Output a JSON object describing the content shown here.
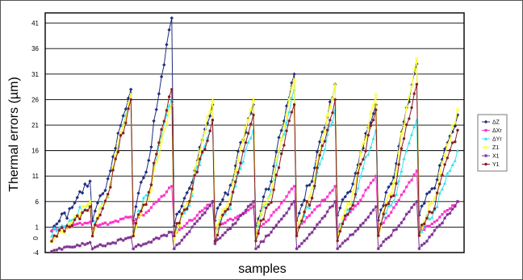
{
  "chart_data": {
    "type": "line",
    "title": "",
    "xlabel": "samples",
    "ylabel": "Thermal errors (µm)",
    "ylim": [
      -4,
      43
    ],
    "y_ticks": [
      -4,
      1,
      6,
      11,
      16,
      21,
      26,
      31,
      36,
      41
    ],
    "y_tick_labels": [
      "-4",
      "1",
      "6",
      "11",
      "16",
      "21",
      "26",
      "31",
      "36",
      "41"
    ],
    "extra_tick_label": "0",
    "grid": "horizontal",
    "legend_position": "right",
    "segment_count": 10,
    "segments": [
      {
        "ΔZ": [
          1,
          10
        ],
        "ΔXr": [
          0.5,
          2
        ],
        "ΔYr": [
          0,
          6
        ],
        "Z1": [
          -1,
          6
        ],
        "X1": [
          -3.5,
          -2
        ],
        "Y1": [
          -1,
          5
        ]
      },
      {
        "ΔZ": [
          3,
          28
        ],
        "ΔXr": [
          1,
          3
        ],
        "ΔYr": [
          0,
          27
        ],
        "Z1": [
          0,
          27
        ],
        "X1": [
          -3,
          -1
        ],
        "Y1": [
          0,
          26
        ]
      },
      {
        "ΔZ": [
          3,
          42
        ],
        "ΔXr": [
          2,
          9
        ],
        "ΔYr": [
          1,
          26
        ],
        "Z1": [
          0,
          25
        ],
        "X1": [
          -3,
          0
        ],
        "Y1": [
          0,
          28
        ]
      },
      {
        "ΔZ": [
          2,
          25
        ],
        "ΔXr": [
          0,
          6
        ],
        "ΔYr": [
          0,
          22
        ],
        "Z1": [
          -1,
          26
        ],
        "X1": [
          -3,
          6
        ],
        "Y1": [
          0,
          22
        ]
      },
      {
        "ΔZ": [
          3,
          25
        ],
        "ΔXr": [
          1,
          5
        ],
        "ΔYr": [
          0,
          20
        ],
        "Z1": [
          0,
          26
        ],
        "X1": [
          -2,
          6
        ],
        "Y1": [
          -1,
          23
        ]
      },
      {
        "ΔZ": [
          2,
          31
        ],
        "ΔXr": [
          0,
          9
        ],
        "ΔYr": [
          0,
          28
        ],
        "Z1": [
          0,
          30
        ],
        "X1": [
          -3,
          6
        ],
        "Y1": [
          -1,
          25
        ]
      },
      {
        "ΔZ": [
          3,
          29
        ],
        "ΔXr": [
          1,
          9
        ],
        "ΔYr": [
          0,
          24
        ],
        "Z1": [
          0,
          29
        ],
        "X1": [
          -3,
          6
        ],
        "Y1": [
          0,
          26
        ]
      },
      {
        "ΔZ": [
          4,
          25
        ],
        "ΔXr": [
          1,
          11
        ],
        "ΔYr": [
          0,
          20
        ],
        "Z1": [
          0,
          27
        ],
        "X1": [
          -3,
          5
        ],
        "Y1": [
          -1,
          24
        ]
      },
      {
        "ΔZ": [
          3,
          33
        ],
        "ΔXr": [
          1,
          12
        ],
        "ΔYr": [
          0,
          22
        ],
        "Z1": [
          0,
          34
        ],
        "X1": [
          -3,
          6
        ],
        "Y1": [
          0,
          29
        ]
      },
      {
        "ΔZ": [
          4,
          23
        ],
        "ΔXr": [
          0,
          6
        ],
        "ΔYr": [
          0,
          16
        ],
        "Z1": [
          0,
          24
        ],
        "X1": [
          -3,
          6
        ],
        "Y1": [
          0,
          20
        ]
      }
    ],
    "series": [
      {
        "name": "ΔZ",
        "color": "#1f2d7f",
        "marker": "diamond",
        "base": "ΔZ",
        "points_per_segment": 16
      },
      {
        "name": "ΔXr",
        "color": "#ff33cc",
        "marker": "square",
        "base": "ΔXr",
        "points_per_segment": 16
      },
      {
        "name": "ΔYr",
        "color": "#33e5f2",
        "marker": "triangle",
        "base": "ΔYr",
        "points_per_segment": 16
      },
      {
        "name": "Z1",
        "color": "#ffff33",
        "marker": "x",
        "base": "Z1",
        "points_per_segment": 16
      },
      {
        "name": "X1",
        "color": "#7a2d8f",
        "marker": "asterisk",
        "base": "X1",
        "points_per_segment": 16
      },
      {
        "name": "Y1",
        "color": "#8b1e24",
        "marker": "circle",
        "base": "Y1",
        "points_per_segment": 16
      }
    ]
  }
}
